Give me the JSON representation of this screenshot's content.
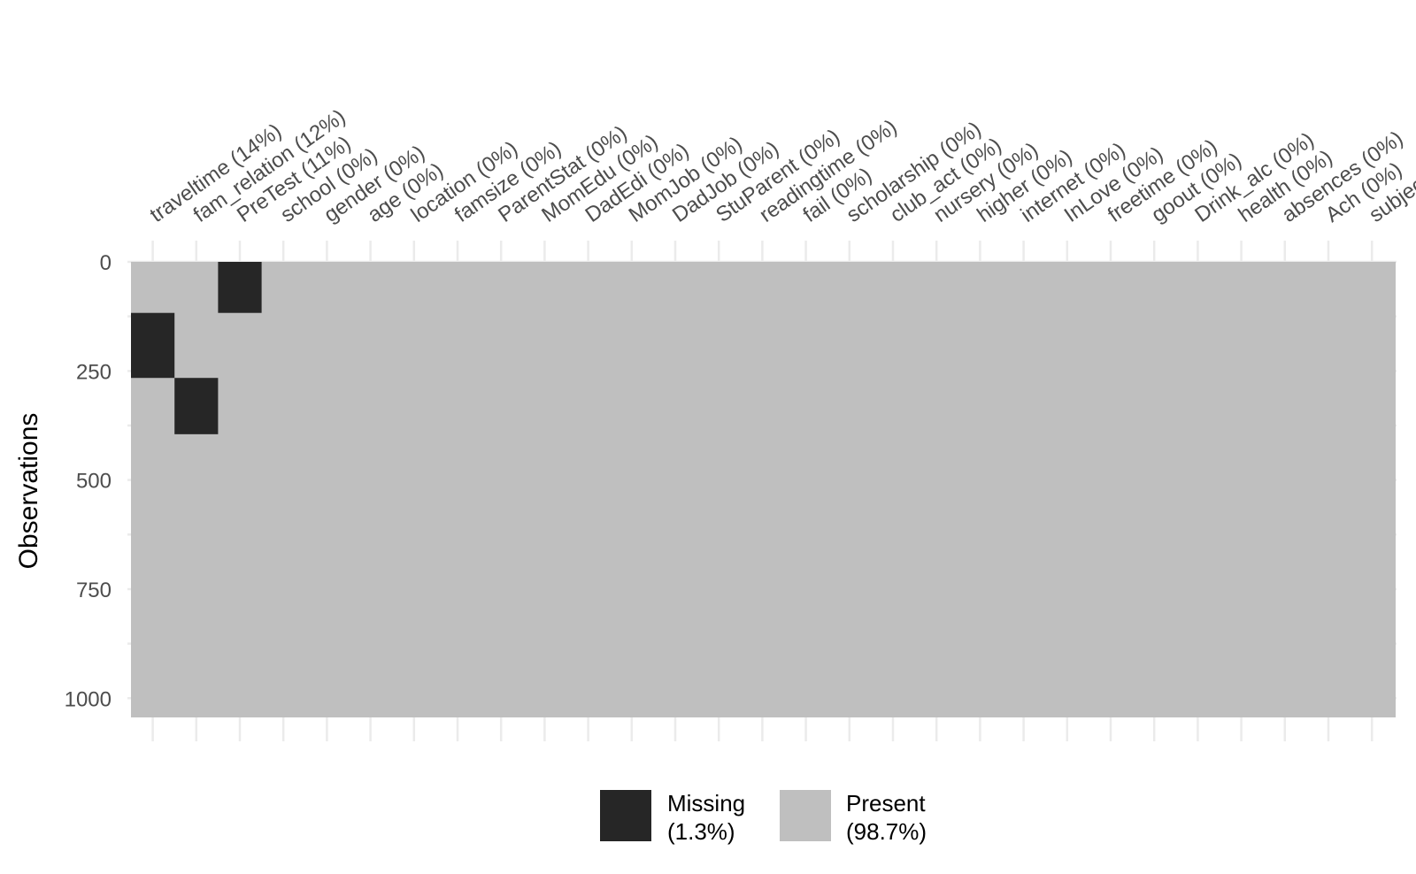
{
  "chart_data": {
    "type": "heatmap",
    "title": "",
    "xlabel": "",
    "ylabel": "Observations",
    "ylim": [
      0,
      1044
    ],
    "y_ticks": [
      0,
      250,
      500,
      750,
      1000
    ],
    "n_rows": 1044,
    "x_tick_labels": [
      "traveltime (14%)",
      "fam_relation (12%)",
      "PreTest (11%)",
      "school (0%)",
      "gender (0%)",
      "age (0%)",
      "location (0%)",
      "famsize (0%)",
      "ParentStat (0%)",
      "MomEdu (0%)",
      "DadEdi (0%)",
      "MomJob (0%)",
      "DadJob (0%)",
      "StuParent (0%)",
      "readingtime (0%)",
      "fail (0%)",
      "scholarship (0%)",
      "club_act (0%)",
      "nursery (0%)",
      "higher (0%)",
      "internet (0%)",
      "InLove (0%)",
      "freetime (0%)",
      "goout (0%)",
      "Drink_alc (0%)",
      "health (0%)",
      "absences (0%)",
      "Ach (0%)",
      "subjec"
    ],
    "missing_blocks": [
      {
        "column": "traveltime (14%)",
        "rows": [
          117,
          266
        ]
      },
      {
        "column": "fam_relation (12%)",
        "rows": [
          266,
          395
        ]
      },
      {
        "column": "PreTest (11%)",
        "rows": [
          0,
          117
        ]
      }
    ],
    "legend": [
      {
        "label_line1": "Missing",
        "label_line2": "(1.3%)",
        "color": "#262626"
      },
      {
        "label_line1": "Present",
        "label_line2": "(98.7%)",
        "color": "#bfbfbf"
      }
    ],
    "legend_position": "bottom",
    "grid": true
  },
  "colors": {
    "missing": "#262626",
    "present": "#bfbfbf",
    "grid": "#ebebeb"
  }
}
